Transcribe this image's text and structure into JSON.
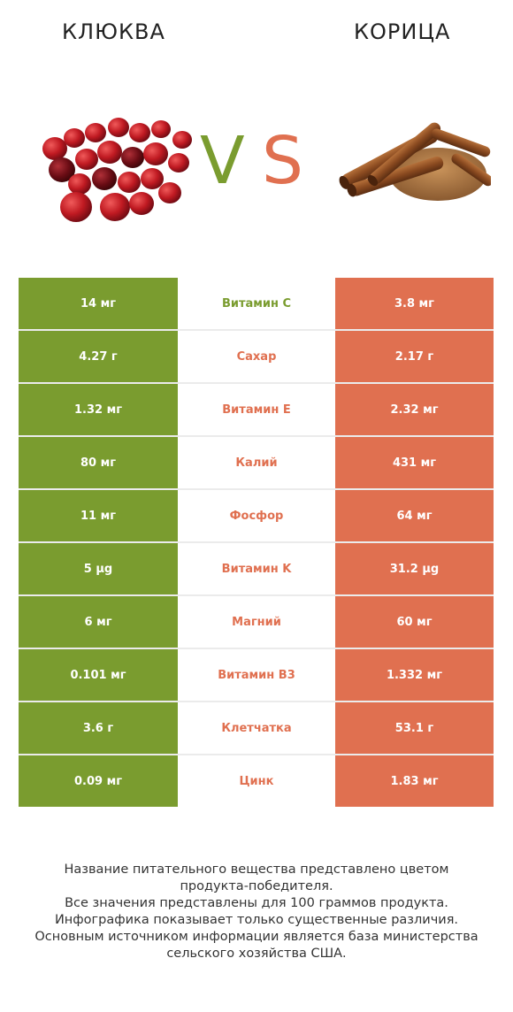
{
  "header": {
    "left_title": "КЛЮКВА",
    "right_title": "КОРИЦА",
    "vs_v": "V",
    "vs_s": "S"
  },
  "colors": {
    "left": "#7a9c2f",
    "right": "#e07050"
  },
  "rows": [
    {
      "left": "14 мг",
      "nutrient": "Витамин C",
      "right": "3.8 мг",
      "winner": "left"
    },
    {
      "left": "4.27 г",
      "nutrient": "Сахар",
      "right": "2.17 г",
      "winner": "right"
    },
    {
      "left": "1.32 мг",
      "nutrient": "Витамин E",
      "right": "2.32 мг",
      "winner": "right"
    },
    {
      "left": "80 мг",
      "nutrient": "Калий",
      "right": "431 мг",
      "winner": "right"
    },
    {
      "left": "11 мг",
      "nutrient": "Фосфор",
      "right": "64 мг",
      "winner": "right"
    },
    {
      "left": "5 µg",
      "nutrient": "Витамин K",
      "right": "31.2 µg",
      "winner": "right"
    },
    {
      "left": "6 мг",
      "nutrient": "Магний",
      "right": "60 мг",
      "winner": "right"
    },
    {
      "left": "0.101 мг",
      "nutrient": "Витамин B3",
      "right": "1.332 мг",
      "winner": "right"
    },
    {
      "left": "3.6 г",
      "nutrient": "Клетчатка",
      "right": "53.1 г",
      "winner": "right"
    },
    {
      "left": "0.09 мг",
      "nutrient": "Цинк",
      "right": "1.83 мг",
      "winner": "right"
    }
  ],
  "footer": {
    "line1": "Название питательного вещества представлено цветом",
    "line2": "продукта-победителя.",
    "line3": "Все значения представлены для 100 граммов продукта.",
    "line4": "Инфографика показывает только существенные различия.",
    "line5": "Основным источником информации является база министерства",
    "line6": "сельского хозяйства США."
  }
}
